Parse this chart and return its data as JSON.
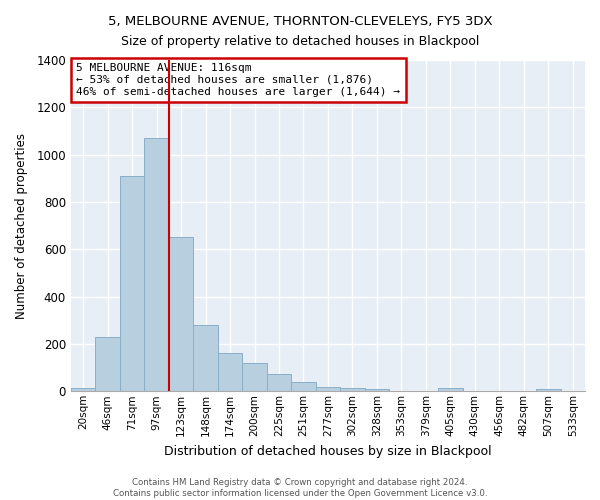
{
  "title1": "5, MELBOURNE AVENUE, THORNTON-CLEVELEYS, FY5 3DX",
  "title2": "Size of property relative to detached houses in Blackpool",
  "xlabel": "Distribution of detached houses by size in Blackpool",
  "ylabel": "Number of detached properties",
  "bar_labels": [
    "20sqm",
    "46sqm",
    "71sqm",
    "97sqm",
    "123sqm",
    "148sqm",
    "174sqm",
    "200sqm",
    "225sqm",
    "251sqm",
    "277sqm",
    "302sqm",
    "328sqm",
    "353sqm",
    "379sqm",
    "405sqm",
    "430sqm",
    "456sqm",
    "482sqm",
    "507sqm",
    "533sqm"
  ],
  "bar_values": [
    15,
    230,
    910,
    1070,
    650,
    280,
    160,
    120,
    75,
    40,
    20,
    15,
    10,
    0,
    0,
    15,
    0,
    0,
    0,
    10,
    0
  ],
  "bar_color": "#b8cfe0",
  "bar_edge_color": "#8aafc8",
  "vline_color": "#cc0000",
  "vline_x_index": 4,
  "annotation_title": "5 MELBOURNE AVENUE: 116sqm",
  "annotation_line1": "← 53% of detached houses are smaller (1,876)",
  "annotation_line2": "46% of semi-detached houses are larger (1,644) →",
  "ylim": [
    0,
    1400
  ],
  "yticks": [
    0,
    200,
    400,
    600,
    800,
    1000,
    1200,
    1400
  ],
  "footnote1": "Contains HM Land Registry data © Crown copyright and database right 2024.",
  "footnote2": "Contains public sector information licensed under the Open Government Licence v3.0.",
  "bg_color": "#e8eef5"
}
